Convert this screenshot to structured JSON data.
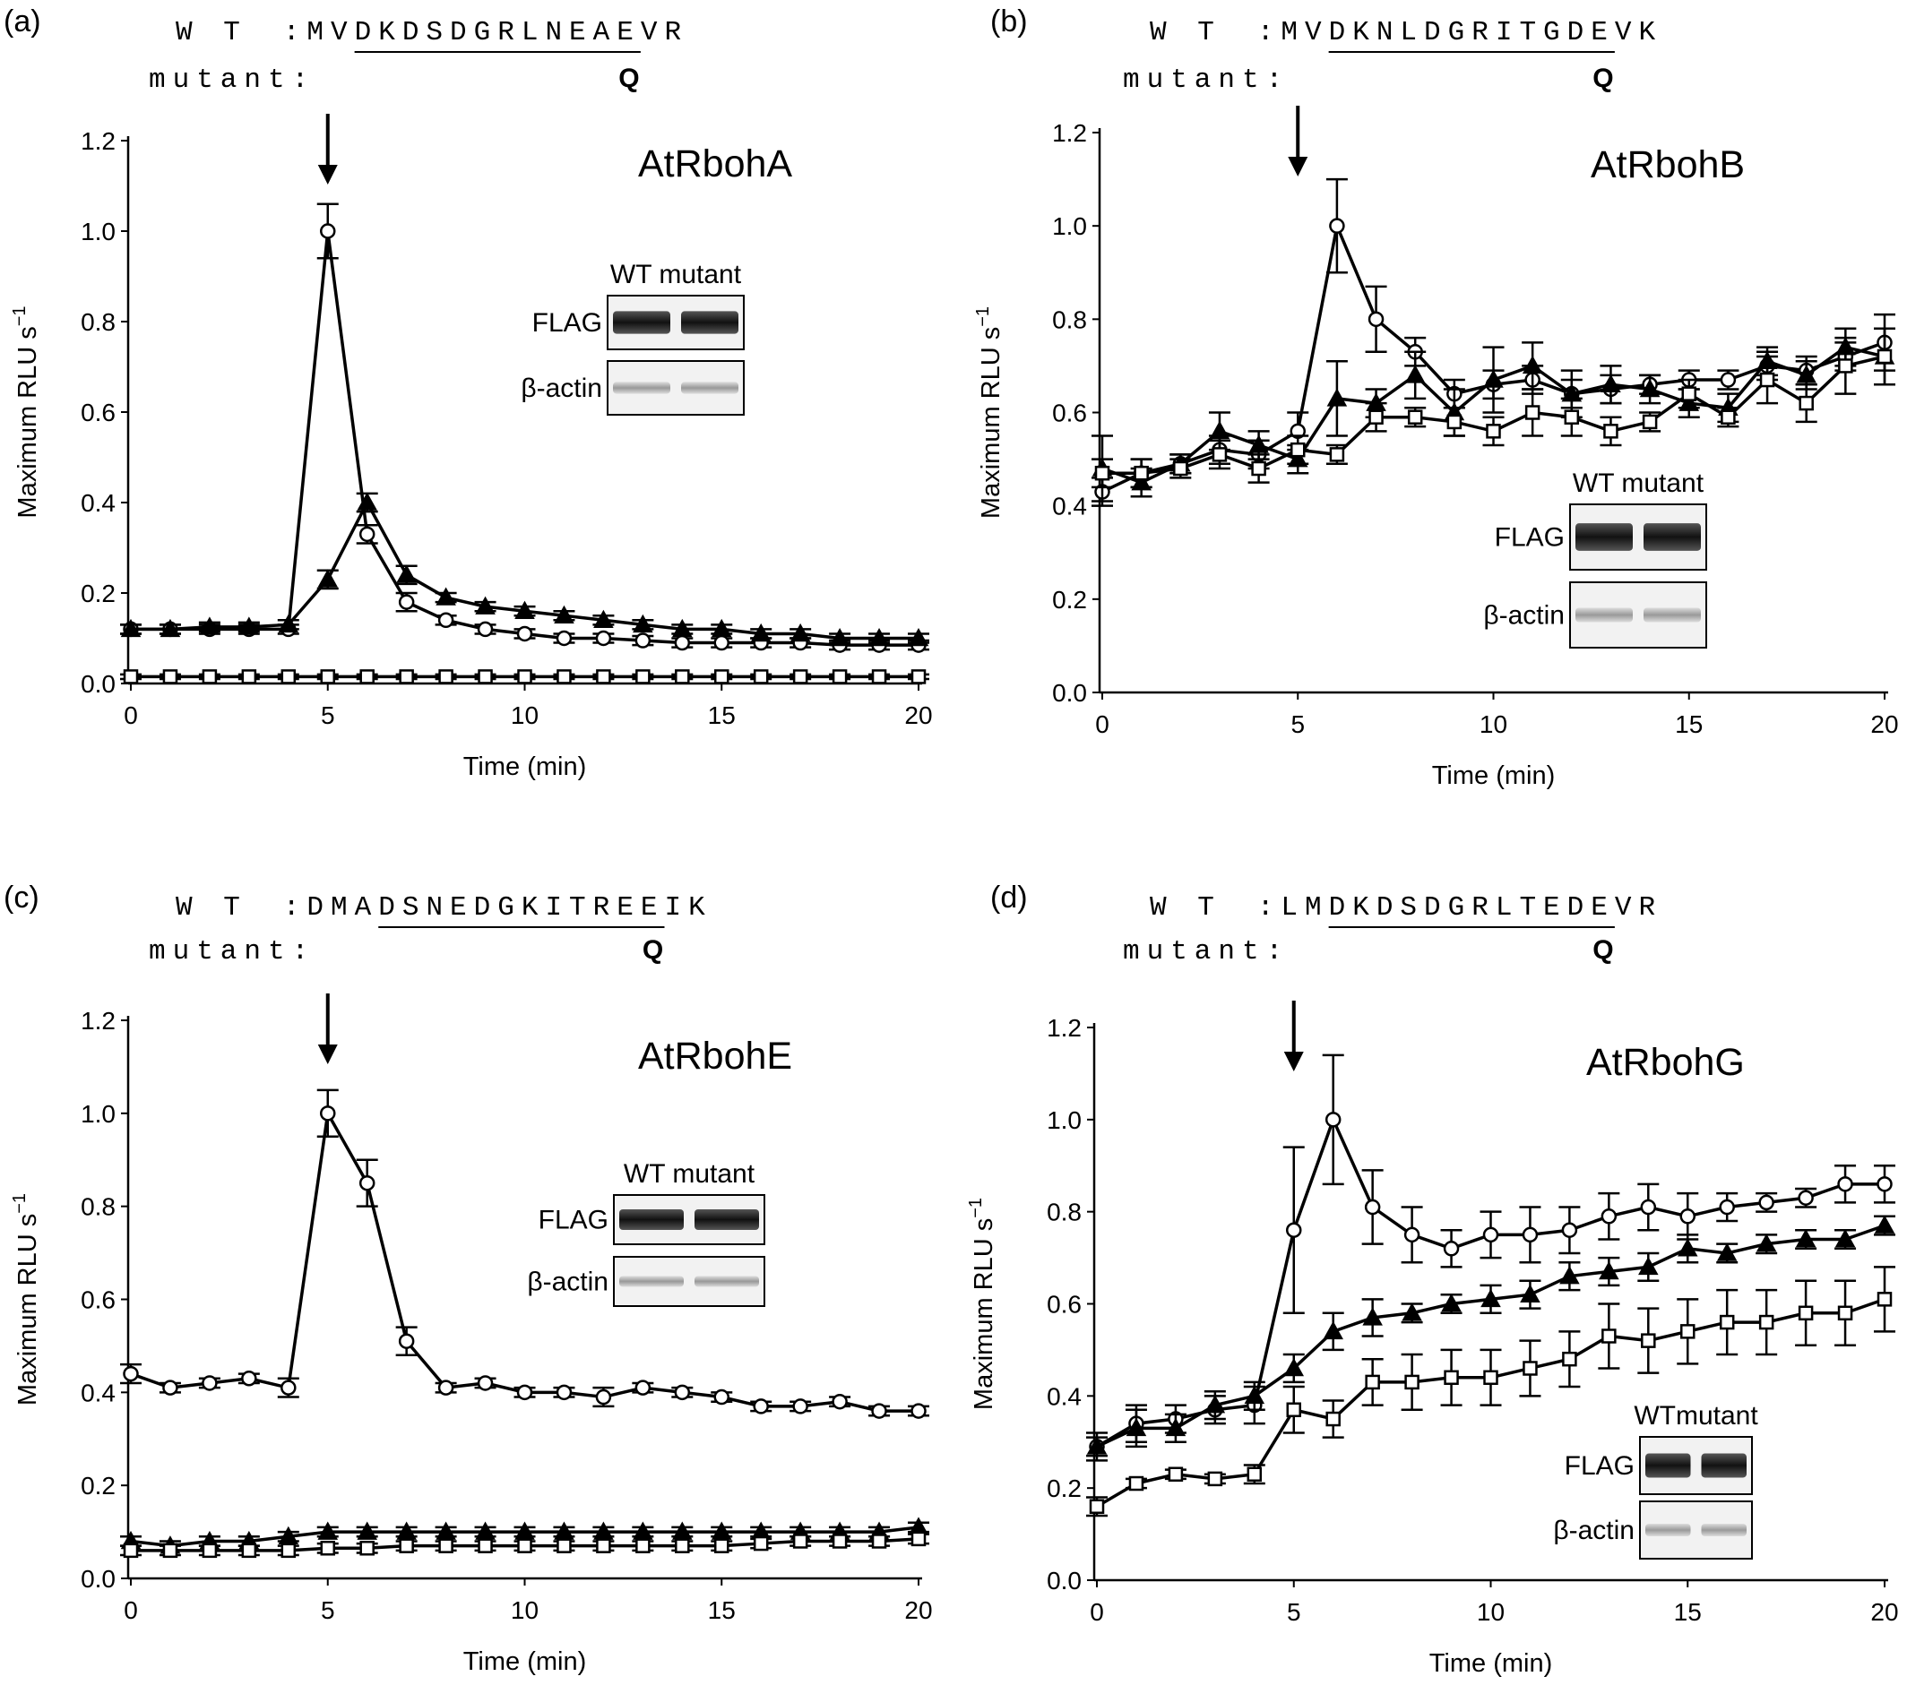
{
  "chart_data": [
    {
      "type": "line",
      "panel_label": "(a)",
      "title": "AtRbohA",
      "xlabel": "Time (min)",
      "ylabel": "Maximum RLU s",
      "ylabel_sup": "−1",
      "xlim": [
        0,
        20
      ],
      "ylim": [
        0,
        1.2
      ],
      "xticks": [
        "0",
        "5",
        "10",
        "15",
        "20"
      ],
      "yticks": [
        "0.0",
        "0.2",
        "0.4",
        "0.6",
        "0.8",
        "1.0",
        "1.2"
      ],
      "arrow_at": 5,
      "sequence": {
        "wt_label": "W T",
        "wt_prefix": ":MV",
        "wt_underlined": "DKDSDGRLNEAE",
        "wt_suffix": "VR",
        "mutant_label": "mutant:",
        "mutant_residue": "Q"
      },
      "blot": {
        "header": "WT mutant",
        "rows": [
          "FLAG",
          "β-actin"
        ]
      },
      "x": [
        0,
        1,
        2,
        3,
        4,
        5,
        6,
        7,
        8,
        9,
        10,
        11,
        12,
        13,
        14,
        15,
        16,
        17,
        18,
        19,
        20
      ],
      "series": [
        {
          "marker": "open-circle",
          "values": [
            0.12,
            0.12,
            0.12,
            0.12,
            0.12,
            1.0,
            0.33,
            0.18,
            0.14,
            0.12,
            0.11,
            0.1,
            0.1,
            0.095,
            0.09,
            0.09,
            0.09,
            0.09,
            0.085,
            0.085,
            0.085
          ],
          "errors": [
            0.01,
            0.01,
            0.01,
            0.01,
            0.01,
            0.06,
            0.02,
            0.02,
            0.01,
            0.01,
            0.01,
            0.01,
            0.01,
            0.01,
            0.01,
            0.01,
            0.01,
            0.01,
            0.01,
            0.01,
            0.01
          ]
        },
        {
          "marker": "filled-triangle",
          "values": [
            0.12,
            0.12,
            0.125,
            0.125,
            0.13,
            0.23,
            0.4,
            0.24,
            0.19,
            0.17,
            0.16,
            0.15,
            0.14,
            0.13,
            0.12,
            0.12,
            0.11,
            0.11,
            0.1,
            0.1,
            0.1
          ],
          "errors": [
            0.01,
            0.01,
            0.01,
            0.01,
            0.01,
            0.02,
            0.02,
            0.02,
            0.01,
            0.01,
            0.01,
            0.01,
            0.01,
            0.01,
            0.01,
            0.01,
            0.01,
            0.01,
            0.01,
            0.01,
            0.01
          ]
        },
        {
          "marker": "open-square",
          "values": [
            0.015,
            0.015,
            0.015,
            0.015,
            0.015,
            0.015,
            0.015,
            0.015,
            0.015,
            0.015,
            0.015,
            0.015,
            0.015,
            0.015,
            0.015,
            0.015,
            0.015,
            0.015,
            0.015,
            0.015,
            0.015
          ],
          "errors": [
            0.005,
            0.005,
            0.005,
            0.005,
            0.005,
            0.005,
            0.005,
            0.005,
            0.005,
            0.005,
            0.005,
            0.005,
            0.005,
            0.005,
            0.005,
            0.005,
            0.005,
            0.005,
            0.005,
            0.005,
            0.005
          ]
        }
      ]
    },
    {
      "type": "line",
      "panel_label": "(b)",
      "title": "AtRbohB",
      "xlabel": "Time (min)",
      "ylabel": "Maximum RLU s",
      "ylabel_sup": "−1",
      "xlim": [
        0,
        20
      ],
      "ylim": [
        0,
        1.2
      ],
      "xticks": [
        "0",
        "5",
        "10",
        "15",
        "20"
      ],
      "yticks": [
        "0.0",
        "0.2",
        "0.4",
        "0.6",
        "0.8",
        "1.0",
        "1.2"
      ],
      "arrow_at": 5,
      "sequence": {
        "wt_label": "W T",
        "wt_prefix": ":MV",
        "wt_underlined": "DKNLDGRITGDE",
        "wt_suffix": "VK",
        "mutant_label": "mutant:",
        "mutant_residue": "Q"
      },
      "blot": {
        "header": "WT mutant",
        "rows": [
          "FLAG",
          "β-actin"
        ]
      },
      "x": [
        0,
        1,
        2,
        3,
        4,
        5,
        6,
        7,
        8,
        9,
        10,
        11,
        12,
        13,
        14,
        15,
        16,
        17,
        18,
        19,
        20
      ],
      "series": [
        {
          "marker": "open-circle",
          "values": [
            0.43,
            0.47,
            0.49,
            0.52,
            0.51,
            0.56,
            1.0,
            0.8,
            0.73,
            0.64,
            0.66,
            0.67,
            0.64,
            0.65,
            0.66,
            0.67,
            0.67,
            0.7,
            0.69,
            0.72,
            0.75
          ],
          "errors": [
            0.03,
            0.03,
            0.02,
            0.03,
            0.03,
            0.04,
            0.1,
            0.07,
            0.03,
            0.03,
            0.03,
            0.03,
            0.03,
            0.03,
            0.02,
            0.02,
            0.02,
            0.03,
            0.03,
            0.03,
            0.06
          ]
        },
        {
          "marker": "filled-triangle",
          "values": [
            0.48,
            0.45,
            0.49,
            0.56,
            0.53,
            0.5,
            0.63,
            0.62,
            0.68,
            0.6,
            0.67,
            0.7,
            0.64,
            0.66,
            0.65,
            0.62,
            0.61,
            0.71,
            0.68,
            0.74,
            0.72
          ],
          "errors": [
            0.07,
            0.03,
            0.02,
            0.04,
            0.03,
            0.03,
            0.08,
            0.03,
            0.05,
            0.05,
            0.07,
            0.05,
            0.05,
            0.04,
            0.03,
            0.03,
            0.03,
            0.03,
            0.03,
            0.04,
            0.06
          ]
        },
        {
          "marker": "open-square",
          "values": [
            0.47,
            0.47,
            0.48,
            0.51,
            0.48,
            0.52,
            0.51,
            0.59,
            0.59,
            0.58,
            0.56,
            0.6,
            0.59,
            0.56,
            0.58,
            0.64,
            0.59,
            0.67,
            0.62,
            0.7,
            0.72
          ],
          "errors": [
            0.03,
            0.03,
            0.02,
            0.03,
            0.03,
            0.03,
            0.02,
            0.03,
            0.02,
            0.03,
            0.03,
            0.05,
            0.04,
            0.03,
            0.02,
            0.03,
            0.02,
            0.05,
            0.04,
            0.06,
            0.06
          ]
        }
      ]
    },
    {
      "type": "line",
      "panel_label": "(c)",
      "title": "AtRbohE",
      "xlabel": "Time (min)",
      "ylabel": "Maximum RLU s",
      "ylabel_sup": "−1",
      "xlim": [
        0,
        20
      ],
      "ylim": [
        0,
        1.2
      ],
      "xticks": [
        "0",
        "5",
        "10",
        "15",
        "20"
      ],
      "yticks": [
        "0.0",
        "0.2",
        "0.4",
        "0.6",
        "0.8",
        "1.0",
        "1.2"
      ],
      "arrow_at": 5,
      "sequence": {
        "wt_label": "W T",
        "wt_prefix": ":DMA",
        "wt_underlined": "DSNEDGKITREE",
        "wt_suffix": "IK",
        "mutant_label": "mutant:",
        "mutant_residue": "Q"
      },
      "blot": {
        "header": "WT mutant",
        "rows": [
          "FLAG",
          "β-actin"
        ]
      },
      "x": [
        0,
        1,
        2,
        3,
        4,
        5,
        6,
        7,
        8,
        9,
        10,
        11,
        12,
        13,
        14,
        15,
        16,
        17,
        18,
        19,
        20
      ],
      "series": [
        {
          "marker": "open-circle",
          "values": [
            0.44,
            0.41,
            0.42,
            0.43,
            0.41,
            1.0,
            0.85,
            0.51,
            0.41,
            0.42,
            0.4,
            0.4,
            0.39,
            0.41,
            0.4,
            0.39,
            0.37,
            0.37,
            0.38,
            0.36,
            0.36
          ],
          "errors": [
            0.02,
            0.01,
            0.01,
            0.01,
            0.02,
            0.05,
            0.05,
            0.03,
            0.01,
            0.01,
            0.01,
            0.01,
            0.02,
            0.01,
            0.01,
            0.01,
            0.01,
            0.01,
            0.01,
            0.01,
            0.01
          ]
        },
        {
          "marker": "filled-triangle",
          "values": [
            0.08,
            0.07,
            0.08,
            0.08,
            0.09,
            0.1,
            0.1,
            0.1,
            0.1,
            0.1,
            0.1,
            0.1,
            0.1,
            0.1,
            0.1,
            0.1,
            0.1,
            0.1,
            0.1,
            0.1,
            0.11
          ],
          "errors": [
            0.01,
            0.01,
            0.01,
            0.01,
            0.01,
            0.01,
            0.01,
            0.01,
            0.01,
            0.01,
            0.01,
            0.01,
            0.01,
            0.01,
            0.01,
            0.01,
            0.01,
            0.01,
            0.01,
            0.01,
            0.01
          ]
        },
        {
          "marker": "open-square",
          "values": [
            0.06,
            0.06,
            0.06,
            0.06,
            0.06,
            0.065,
            0.065,
            0.07,
            0.07,
            0.07,
            0.07,
            0.07,
            0.07,
            0.07,
            0.07,
            0.07,
            0.075,
            0.08,
            0.08,
            0.08,
            0.085
          ],
          "errors": [
            0.01,
            0.01,
            0.01,
            0.01,
            0.01,
            0.01,
            0.01,
            0.01,
            0.01,
            0.01,
            0.01,
            0.01,
            0.01,
            0.01,
            0.01,
            0.01,
            0.01,
            0.01,
            0.01,
            0.01,
            0.01
          ]
        }
      ]
    },
    {
      "type": "line",
      "panel_label": "(d)",
      "title": "AtRbohG",
      "xlabel": "Time (min)",
      "ylabel": "Maximum RLU s",
      "ylabel_sup": "−1",
      "xlim": [
        0,
        20
      ],
      "ylim": [
        0,
        1.2
      ],
      "xticks": [
        "0",
        "5",
        "10",
        "15",
        "20"
      ],
      "yticks": [
        "0.0",
        "0.2",
        "0.4",
        "0.6",
        "0.8",
        "1.0",
        "1.2"
      ],
      "arrow_at": 5,
      "sequence": {
        "wt_label": "W T",
        "wt_prefix": ":LM",
        "wt_underlined": "DKDSDGRLTEDE",
        "wt_suffix": "VR",
        "mutant_label": "mutant:",
        "mutant_residue": "Q"
      },
      "blot": {
        "header": "WTmutant",
        "rows": [
          "FLAG",
          "β-actin"
        ]
      },
      "x": [
        0,
        1,
        2,
        3,
        4,
        5,
        6,
        7,
        8,
        9,
        10,
        11,
        12,
        13,
        14,
        15,
        16,
        17,
        18,
        19,
        20
      ],
      "series": [
        {
          "marker": "open-circle",
          "values": [
            0.29,
            0.34,
            0.35,
            0.37,
            0.38,
            0.76,
            1.0,
            0.81,
            0.75,
            0.72,
            0.75,
            0.75,
            0.76,
            0.79,
            0.81,
            0.79,
            0.81,
            0.82,
            0.83,
            0.86,
            0.86
          ],
          "errors": [
            0.03,
            0.04,
            0.03,
            0.03,
            0.04,
            0.18,
            0.14,
            0.08,
            0.06,
            0.04,
            0.05,
            0.06,
            0.05,
            0.05,
            0.05,
            0.05,
            0.03,
            0.02,
            0.02,
            0.04,
            0.04
          ]
        },
        {
          "marker": "filled-triangle",
          "values": [
            0.29,
            0.33,
            0.33,
            0.38,
            0.4,
            0.46,
            0.54,
            0.57,
            0.58,
            0.6,
            0.61,
            0.62,
            0.66,
            0.67,
            0.68,
            0.72,
            0.71,
            0.73,
            0.74,
            0.74,
            0.77
          ],
          "errors": [
            0.02,
            0.04,
            0.03,
            0.03,
            0.03,
            0.03,
            0.04,
            0.04,
            0.02,
            0.02,
            0.03,
            0.03,
            0.03,
            0.03,
            0.03,
            0.03,
            0.02,
            0.02,
            0.02,
            0.02,
            0.02
          ]
        },
        {
          "marker": "open-square",
          "values": [
            0.16,
            0.21,
            0.23,
            0.22,
            0.23,
            0.37,
            0.35,
            0.43,
            0.43,
            0.44,
            0.44,
            0.46,
            0.48,
            0.53,
            0.52,
            0.54,
            0.56,
            0.56,
            0.58,
            0.58,
            0.61
          ],
          "errors": [
            0.02,
            0.01,
            0.01,
            0.01,
            0.02,
            0.05,
            0.04,
            0.05,
            0.06,
            0.06,
            0.06,
            0.06,
            0.06,
            0.07,
            0.07,
            0.07,
            0.07,
            0.07,
            0.07,
            0.07,
            0.07
          ]
        }
      ]
    }
  ]
}
